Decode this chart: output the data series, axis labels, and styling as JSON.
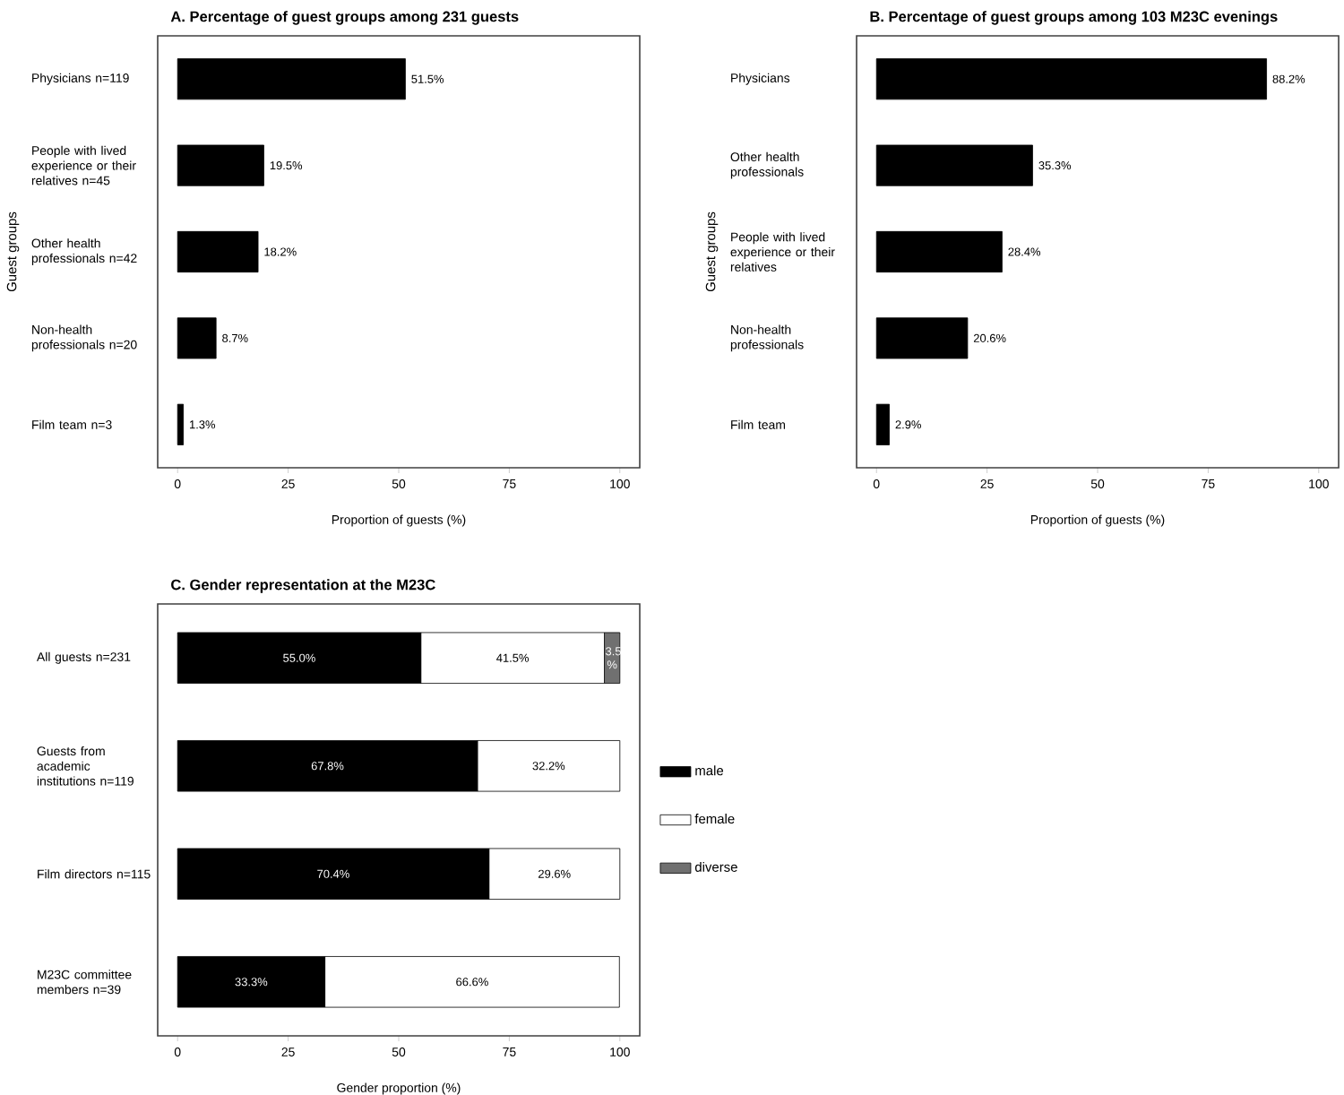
{
  "chart_data": [
    {
      "type": "bar",
      "orientation": "horizontal",
      "title": "A. Percentage of guest groups among 231 guests",
      "xlabel": "Proportion of guests (%)",
      "ylabel": "Guest groups",
      "categories": [
        "Physicians n=119",
        "People with lived experience or their relatives n=45",
        "Other health professionals n=42",
        "Non-health professionals n=20",
        "Film team n=3"
      ],
      "values": [
        51.5,
        19.5,
        18.2,
        8.7,
        1.3
      ],
      "color": "#000000",
      "value_labels": [
        "51.5%",
        "19.5%",
        "18.2%",
        "8.7%",
        "1.3%"
      ],
      "xlim": [
        -4.5,
        104.5
      ],
      "xticks": [
        0,
        25,
        50,
        75,
        100
      ]
    },
    {
      "type": "bar",
      "orientation": "horizontal",
      "title": "B. Percentage of guest groups among 103 M23C evenings",
      "xlabel": "Proportion of guests (%)",
      "ylabel": "Guest groups",
      "categories": [
        "Physicians",
        "Other health professionals",
        "People with lived experience or their relatives",
        "Non-health professionals",
        "Film team"
      ],
      "values": [
        88.2,
        35.3,
        28.4,
        20.6,
        2.9
      ],
      "color": "#000000",
      "value_labels": [
        "88.2%",
        "35.3%",
        "28.4%",
        "20.6%",
        "2.9%"
      ],
      "xlim": [
        -4.5,
        104.5
      ],
      "xticks": [
        0,
        25,
        50,
        75,
        100
      ]
    },
    {
      "type": "bar",
      "orientation": "horizontal",
      "stacked": true,
      "title": "C. Gender representation at the M23C",
      "xlabel": "Gender proportion (%)",
      "categories": [
        "All guests n=231",
        "Guests from academic institutions n=119",
        "Film directors n=115",
        "M23C committee members n=39"
      ],
      "series": [
        {
          "name": "male",
          "color": "#000000",
          "values": [
            55.0,
            67.8,
            70.4,
            33.3
          ],
          "value_labels": [
            "55.0%",
            "67.8%",
            "70.4%",
            "33.3%"
          ]
        },
        {
          "name": "female",
          "color": "#ffffff",
          "values": [
            41.5,
            32.2,
            29.6,
            66.6
          ],
          "value_labels": [
            "41.5%",
            "32.2%",
            "29.6%",
            "66.6%"
          ]
        },
        {
          "name": "diverse",
          "color": "#707070",
          "values": [
            3.5,
            null,
            null,
            null
          ],
          "value_labels": [
            "3.5 %",
            null,
            null,
            null
          ]
        }
      ],
      "xlim": [
        -4.5,
        104.5
      ],
      "xticks": [
        0,
        25,
        50,
        75,
        100
      ],
      "legend": "right"
    }
  ]
}
